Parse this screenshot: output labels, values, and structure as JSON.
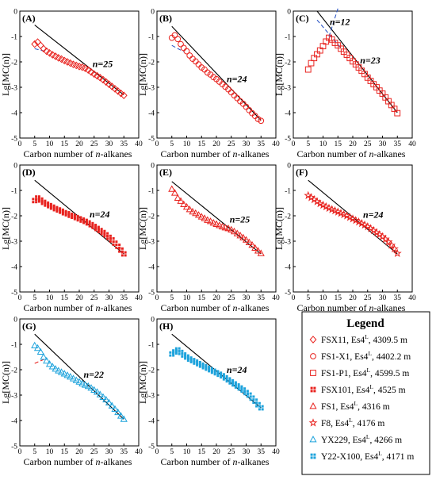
{
  "x_axis_title": {
    "prefix": "Carbon number of ",
    "italic": "n",
    "suffix": "-alkanes"
  },
  "y_axis_title": "Lg[MC(n)]",
  "legend": {
    "title": "Legend",
    "items": [
      {
        "sample": "FSX11",
        "formation": "Es4",
        "sup": "L",
        "depth": ", 4309.5 m",
        "marker": "diamond",
        "color": "#e8221e"
      },
      {
        "sample": "FS1-X1",
        "formation": "Es4",
        "sup": "L",
        "depth": ", 4402.2 m",
        "marker": "circle",
        "color": "#e8221e"
      },
      {
        "sample": "FS1-P1",
        "formation": "Es4",
        "sup": "L",
        "depth": ", 4599.5 m",
        "marker": "square",
        "color": "#e8221e"
      },
      {
        "sample": "FSX101",
        "formation": "Es4",
        "sup": "L",
        "depth": ", 4525 m",
        "marker": "filled-squares",
        "color": "#e8221e"
      },
      {
        "sample": "FS1",
        "formation": "Es4",
        "sup": "L",
        "depth": ", 4316 m",
        "marker": "triangle",
        "color": "#e8221e"
      },
      {
        "sample": "F8",
        "formation": "Es4",
        "sup": "L",
        "depth": ", 4176 m",
        "marker": "star",
        "color": "#e8221e"
      },
      {
        "sample": "YX229",
        "formation": "Es4",
        "sup": "L",
        "depth": ", 4266 m",
        "marker": "triangle",
        "color": "#1ea3dc"
      },
      {
        "sample": "Y22-X100",
        "formation": "Es4",
        "sup": "L",
        "depth": ", 4171 m",
        "marker": "filled-squares",
        "color": "#1ea3dc"
      }
    ]
  },
  "chart_data": [
    {
      "panel": "(A)",
      "type": "scatter",
      "marker": "diamond",
      "color": "#e8221e",
      "x": [
        5,
        6,
        7,
        8,
        9,
        10,
        11,
        12,
        13,
        14,
        15,
        16,
        17,
        18,
        19,
        20,
        21,
        22,
        23,
        24,
        25,
        26,
        27,
        28,
        29,
        30,
        31,
        32,
        33,
        34,
        35
      ],
      "y": [
        -1.3,
        -1.22,
        -1.35,
        -1.48,
        -1.58,
        -1.65,
        -1.72,
        -1.78,
        -1.84,
        -1.89,
        -1.95,
        -2.0,
        -2.05,
        -2.1,
        -2.14,
        -2.18,
        -2.21,
        -2.25,
        -2.32,
        -2.4,
        -2.48,
        -2.55,
        -2.62,
        -2.7,
        -2.79,
        -2.88,
        -2.97,
        -3.06,
        -3.15,
        -3.24,
        -3.32
      ],
      "fit_line": {
        "x": [
          5,
          35
        ],
        "y": [
          -0.55,
          -3.3
        ]
      },
      "dashed_line": {
        "x": [
          5,
          9
        ],
        "y": [
          -1.48,
          -1.6
        ],
        "color": "#2b55c5"
      },
      "n_label": "n=25",
      "n_x": 25,
      "xlim": [
        0,
        40
      ],
      "ylim": [
        -5,
        0
      ],
      "xticks": [
        0,
        5,
        10,
        15,
        20,
        25,
        30,
        35,
        40
      ],
      "yticks": [
        0,
        -1,
        -2,
        -3,
        -4,
        -5
      ]
    },
    {
      "panel": "(B)",
      "type": "scatter",
      "marker": "circle",
      "color": "#e8221e",
      "x": [
        5,
        6,
        7,
        8,
        9,
        10,
        11,
        12,
        13,
        14,
        15,
        16,
        17,
        18,
        19,
        20,
        21,
        22,
        23,
        24,
        25,
        26,
        27,
        28,
        29,
        30,
        31,
        32,
        33,
        34,
        35
      ],
      "y": [
        -1.05,
        -0.95,
        -1.1,
        -1.3,
        -1.45,
        -1.58,
        -1.75,
        -1.88,
        -1.98,
        -2.1,
        -2.22,
        -2.3,
        -2.42,
        -2.5,
        -2.6,
        -2.68,
        -2.78,
        -2.88,
        -2.98,
        -3.08,
        -3.2,
        -3.32,
        -3.43,
        -3.55,
        -3.65,
        -3.77,
        -3.9,
        -4.02,
        -4.13,
        -4.25,
        -4.32
      ],
      "fit_line": {
        "x": [
          5,
          35
        ],
        "y": [
          -0.6,
          -4.3
        ]
      },
      "dashed_line": {
        "x": [
          5,
          9
        ],
        "y": [
          -1.35,
          -1.6
        ],
        "color": "#2b55c5"
      },
      "n_label": "n=24",
      "n_x": 24,
      "xlim": [
        0,
        40
      ],
      "ylim": [
        -5,
        0
      ],
      "xticks": [
        0,
        5,
        10,
        15,
        20,
        25,
        30,
        35,
        40
      ],
      "yticks": [
        0,
        -1,
        -2,
        -3,
        -4,
        -5
      ]
    },
    {
      "panel": "(C)",
      "type": "scatter",
      "marker": "square",
      "color": "#e8221e",
      "x": [
        5,
        6,
        7,
        8,
        9,
        10,
        11,
        12,
        13,
        14,
        15,
        16,
        17,
        18,
        19,
        20,
        21,
        22,
        23,
        24,
        25,
        26,
        27,
        28,
        29,
        30,
        31,
        32,
        33,
        34,
        35
      ],
      "y": [
        -2.3,
        -2.05,
        -1.85,
        -1.7,
        -1.55,
        -1.38,
        -1.2,
        -1.05,
        -1.12,
        -1.25,
        -1.35,
        -1.48,
        -1.6,
        -1.72,
        -1.85,
        -1.98,
        -2.1,
        -2.22,
        -2.35,
        -2.48,
        -2.62,
        -2.75,
        -2.88,
        -3.0,
        -3.13,
        -3.25,
        -3.4,
        -3.55,
        -3.7,
        -3.85,
        -4.02
      ],
      "fit_line": {
        "x": [
          8,
          35
        ],
        "y": [
          0,
          -4.0
        ]
      },
      "dashed_line": {
        "x": [
          8,
          16
        ],
        "y": [
          -0.35,
          -1.45
        ],
        "color": "#2b55c5"
      },
      "dashed_line2": {
        "x": [
          12,
          15
        ],
        "y": [
          -1.0,
          0.1
        ],
        "color": "#2b55c5"
      },
      "n_label": "n=23",
      "n_x": 23,
      "n_label2": "n=12",
      "n_x2": 12,
      "xlim": [
        0,
        40
      ],
      "ylim": [
        -5,
        0
      ],
      "xticks": [
        0,
        5,
        10,
        15,
        20,
        25,
        30,
        35,
        40
      ],
      "yticks": [
        0,
        -1,
        -2,
        -3,
        -4,
        -5
      ]
    },
    {
      "panel": "(D)",
      "type": "scatter",
      "marker": "filled-squares",
      "color": "#e8221e",
      "x": [
        5,
        6,
        7,
        8,
        9,
        10,
        11,
        12,
        13,
        14,
        15,
        16,
        17,
        18,
        19,
        20,
        21,
        22,
        23,
        24,
        25,
        26,
        27,
        28,
        29,
        30,
        31,
        32,
        33,
        34,
        35
      ],
      "y": [
        -1.4,
        -1.3,
        -1.38,
        -1.47,
        -1.54,
        -1.6,
        -1.66,
        -1.72,
        -1.77,
        -1.82,
        -1.88,
        -1.92,
        -1.98,
        -2.02,
        -2.07,
        -2.12,
        -2.17,
        -2.22,
        -2.28,
        -2.35,
        -2.42,
        -2.5,
        -2.58,
        -2.66,
        -2.75,
        -2.85,
        -2.95,
        -3.08,
        -3.2,
        -3.35,
        -3.5
      ],
      "fit_line": {
        "x": [
          5,
          35
        ],
        "y": [
          -0.6,
          -3.5
        ]
      },
      "n_label": "n=24",
      "n_x": 24,
      "xlim": [
        0,
        40
      ],
      "ylim": [
        -5,
        0
      ],
      "xticks": [
        0,
        5,
        10,
        15,
        20,
        25,
        30,
        35,
        40
      ],
      "yticks": [
        0,
        -1,
        -2,
        -3,
        -4,
        -5
      ]
    },
    {
      "panel": "(E)",
      "type": "scatter",
      "marker": "triangle",
      "color": "#e8221e",
      "x": [
        5,
        6,
        7,
        8,
        9,
        10,
        11,
        12,
        13,
        14,
        15,
        16,
        17,
        18,
        19,
        20,
        21,
        22,
        23,
        24,
        25,
        26,
        27,
        28,
        29,
        30,
        31,
        32,
        33,
        34,
        35
      ],
      "y": [
        -0.95,
        -1.1,
        -1.3,
        -1.42,
        -1.55,
        -1.65,
        -1.75,
        -1.84,
        -1.9,
        -1.97,
        -2.04,
        -2.1,
        -2.17,
        -2.22,
        -2.28,
        -2.33,
        -2.38,
        -2.43,
        -2.47,
        -2.5,
        -2.55,
        -2.62,
        -2.7,
        -2.78,
        -2.86,
        -2.95,
        -3.05,
        -3.15,
        -3.27,
        -3.38,
        -3.48
      ],
      "fit_line": {
        "x": [
          5,
          35
        ],
        "y": [
          -0.65,
          -3.5
        ]
      },
      "n_label": "n=25",
      "n_x": 25,
      "xlim": [
        0,
        40
      ],
      "ylim": [
        -5,
        0
      ],
      "xticks": [
        0,
        5,
        10,
        15,
        20,
        25,
        30,
        35,
        40
      ],
      "yticks": [
        0,
        -1,
        -2,
        -3,
        -4,
        -5
      ]
    },
    {
      "panel": "(F)",
      "type": "scatter",
      "marker": "star",
      "color": "#e8221e",
      "x": [
        5,
        6,
        7,
        8,
        9,
        10,
        11,
        12,
        13,
        14,
        15,
        16,
        17,
        18,
        19,
        20,
        21,
        22,
        23,
        24,
        25,
        26,
        27,
        28,
        29,
        30,
        31,
        32,
        33,
        34,
        35
      ],
      "y": [
        -1.2,
        -1.28,
        -1.36,
        -1.44,
        -1.52,
        -1.58,
        -1.64,
        -1.7,
        -1.75,
        -1.8,
        -1.85,
        -1.9,
        -1.95,
        -2.0,
        -2.06,
        -2.12,
        -2.18,
        -2.24,
        -2.3,
        -2.36,
        -2.43,
        -2.5,
        -2.58,
        -2.66,
        -2.74,
        -2.82,
        -2.92,
        -3.03,
        -3.16,
        -3.3,
        -3.48
      ],
      "fit_line": {
        "x": [
          5,
          35
        ],
        "y": [
          -0.6,
          -3.5
        ]
      },
      "n_label": "n=24",
      "n_x": 24,
      "xlim": [
        0,
        40
      ],
      "ylim": [
        -5,
        0
      ],
      "xticks": [
        0,
        5,
        10,
        15,
        20,
        25,
        30,
        35,
        40
      ],
      "yticks": [
        0,
        -1,
        -2,
        -3,
        -4,
        -5
      ]
    },
    {
      "panel": "(G)",
      "type": "scatter",
      "marker": "triangle",
      "color": "#1ea3dc",
      "x": [
        5,
        6,
        7,
        8,
        9,
        10,
        11,
        12,
        13,
        14,
        15,
        16,
        17,
        18,
        19,
        20,
        21,
        22,
        23,
        24,
        25,
        26,
        27,
        28,
        29,
        30,
        31,
        32,
        33,
        34,
        35
      ],
      "y": [
        -1.05,
        -1.15,
        -1.3,
        -1.5,
        -1.65,
        -1.78,
        -1.88,
        -1.97,
        -2.04,
        -2.1,
        -2.16,
        -2.22,
        -2.28,
        -2.35,
        -2.42,
        -2.48,
        -2.55,
        -2.6,
        -2.65,
        -2.72,
        -2.8,
        -2.88,
        -2.98,
        -3.08,
        -3.18,
        -3.3,
        -3.42,
        -3.55,
        -3.68,
        -3.82,
        -3.95
      ],
      "fit_line": {
        "x": [
          5,
          35
        ],
        "y": [
          -0.6,
          -3.95
        ]
      },
      "dashed_line": {
        "x": [
          5,
          9
        ],
        "y": [
          -1.75,
          -1.55
        ],
        "color": "#e8221e"
      },
      "n_label": "n=22",
      "n_x": 22,
      "xlim": [
        0,
        40
      ],
      "ylim": [
        -5,
        0
      ],
      "xticks": [
        0,
        5,
        10,
        15,
        20,
        25,
        30,
        35,
        40
      ],
      "yticks": [
        0,
        -1,
        -2,
        -3,
        -4,
        -5
      ]
    },
    {
      "panel": "(H)",
      "type": "scatter",
      "marker": "filled-squares",
      "color": "#1ea3dc",
      "x": [
        5,
        6,
        7,
        8,
        9,
        10,
        11,
        12,
        13,
        14,
        15,
        16,
        17,
        18,
        19,
        20,
        21,
        22,
        23,
        24,
        25,
        26,
        27,
        28,
        29,
        30,
        31,
        32,
        33,
        34,
        35
      ],
      "y": [
        -1.38,
        -1.3,
        -1.22,
        -1.32,
        -1.42,
        -1.5,
        -1.58,
        -1.64,
        -1.7,
        -1.76,
        -1.82,
        -1.88,
        -1.94,
        -2.0,
        -2.06,
        -2.12,
        -2.18,
        -2.24,
        -2.32,
        -2.4,
        -2.48,
        -2.56,
        -2.64,
        -2.72,
        -2.8,
        -2.9,
        -3.0,
        -3.12,
        -3.24,
        -3.38,
        -3.5
      ],
      "fit_line": {
        "x": [
          5,
          35
        ],
        "y": [
          -0.6,
          -3.5
        ]
      },
      "n_label": "n=24",
      "n_x": 24,
      "xlim": [
        0,
        40
      ],
      "ylim": [
        -5,
        0
      ],
      "xticks": [
        0,
        5,
        10,
        15,
        20,
        25,
        30,
        35,
        40
      ],
      "yticks": [
        0,
        -1,
        -2,
        -3,
        -4,
        -5
      ]
    }
  ]
}
